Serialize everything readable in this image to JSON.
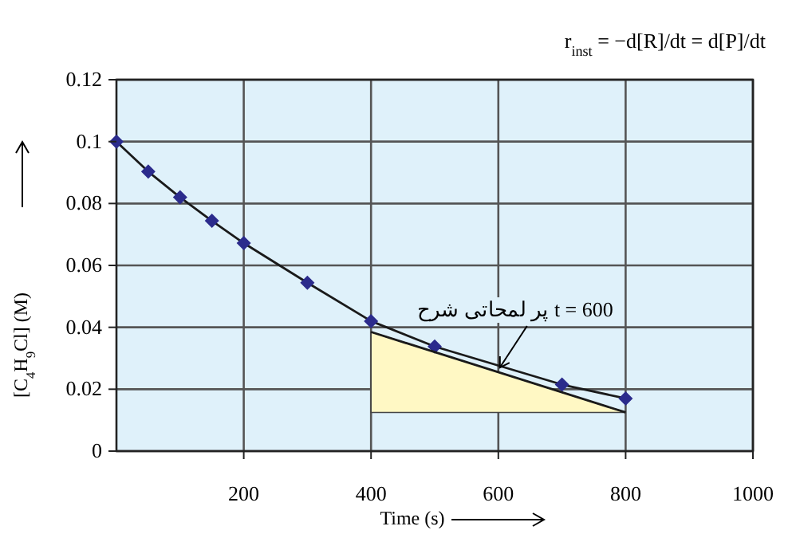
{
  "chart_data": {
    "type": "line",
    "xlabel": "Time (s)",
    "ylabel": "[C$_{4}$H$_{9}$Cl] (M)",
    "xlim": [
      0,
      1000
    ],
    "ylim": [
      0,
      0.12
    ],
    "xticks": [
      200,
      400,
      600,
      800,
      1000
    ],
    "yticks": [
      0,
      0.02,
      0.04,
      0.06,
      0.08,
      0.1,
      0.12
    ],
    "grid": true,
    "series": [
      {
        "type": "line",
        "color": "#1a1a1a",
        "marker": "none",
        "x": [
          0,
          50,
          100,
          150,
          200,
          300,
          400,
          500,
          700,
          800
        ],
        "values": [
          0.1,
          0.0903,
          0.082,
          0.0744,
          0.0672,
          0.0544,
          0.042,
          0.0338,
          0.0215,
          0.017
        ]
      },
      {
        "type": "scatter",
        "color": "#2b2b8c",
        "marker": "diamond",
        "x": [
          0,
          50,
          100,
          150,
          200,
          300,
          400,
          500,
          700,
          800
        ],
        "values": [
          0.1,
          0.0903,
          0.082,
          0.0744,
          0.0672,
          0.0544,
          0.042,
          0.0338,
          0.0215,
          0.017
        ]
      },
      {
        "type": "line",
        "color": "#1a1a1a",
        "marker": "none",
        "x": [
          400,
          800
        ],
        "values": [
          0.0385,
          0.0125
        ]
      }
    ],
    "annotations": [
      {
        "text": "t = 600 پر لمحاتی شرح",
        "x": 600,
        "y": 0.026
      },
      "r$_{inst}$ = −d[R]/dt = d[P]/dt"
    ]
  }
}
